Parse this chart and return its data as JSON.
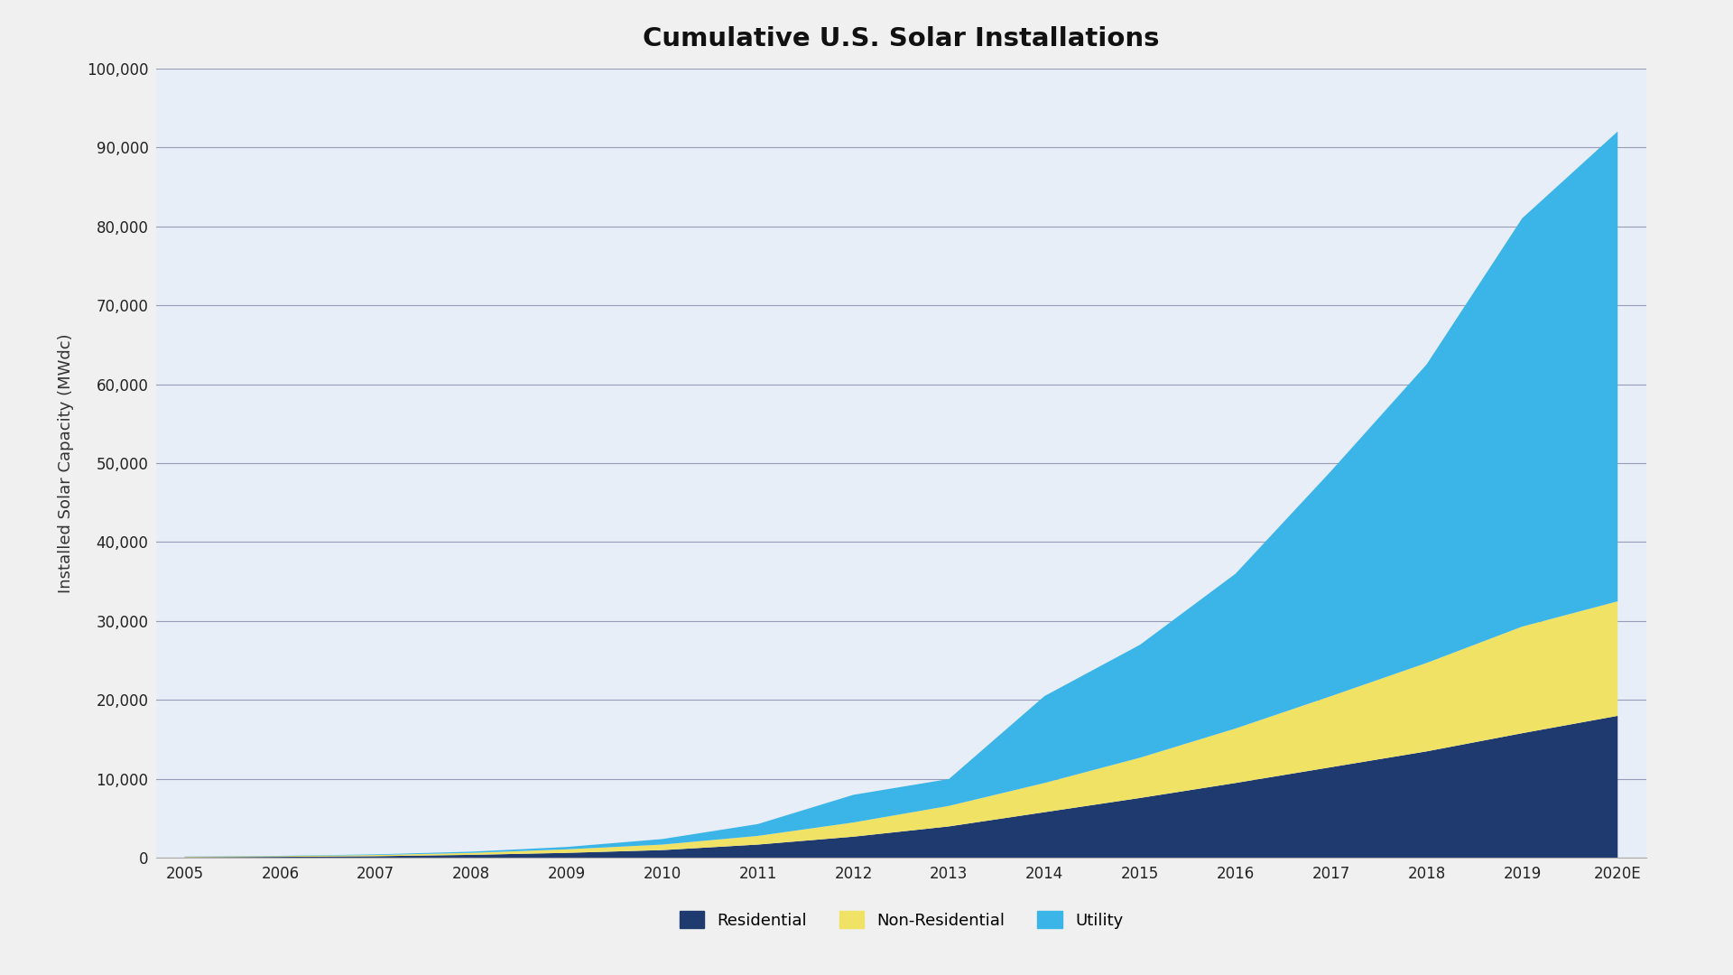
{
  "title": "Cumulative U.S. Solar Installations",
  "ylabel": "Installed Solar Capacity (MWdc)",
  "years": [
    "2005",
    "2006",
    "2007",
    "2008",
    "2009",
    "2010",
    "2011",
    "2012",
    "2013",
    "2014",
    "2015",
    "2016",
    "2017",
    "2018",
    "2019",
    "2020E"
  ],
  "residential": [
    100,
    150,
    230,
    400,
    650,
    1000,
    1700,
    2700,
    4000,
    5800,
    7600,
    9500,
    11500,
    13500,
    15800,
    18000
  ],
  "non_residential": [
    60,
    90,
    150,
    250,
    450,
    700,
    1100,
    1800,
    2600,
    3700,
    5100,
    6900,
    9000,
    11200,
    13500,
    14500
  ],
  "utility": [
    20,
    40,
    80,
    150,
    300,
    700,
    1500,
    3500,
    3400,
    11000,
    14300,
    19600,
    28500,
    37800,
    51700,
    59500
  ],
  "colors": {
    "residential": "#1e3a6e",
    "non_residential": "#f0e265",
    "utility": "#3bb5e8"
  },
  "legend_labels": [
    "Residential",
    "Non-Residential",
    "Utility"
  ],
  "ylim": [
    0,
    100000
  ],
  "yticks": [
    0,
    10000,
    20000,
    30000,
    40000,
    50000,
    60000,
    70000,
    80000,
    90000,
    100000
  ],
  "background_color": "#e8eef7",
  "figure_background": "#f0f0f0",
  "grid_color": "#4a4a7a",
  "title_fontsize": 21,
  "axis_label_fontsize": 13,
  "tick_fontsize": 12
}
